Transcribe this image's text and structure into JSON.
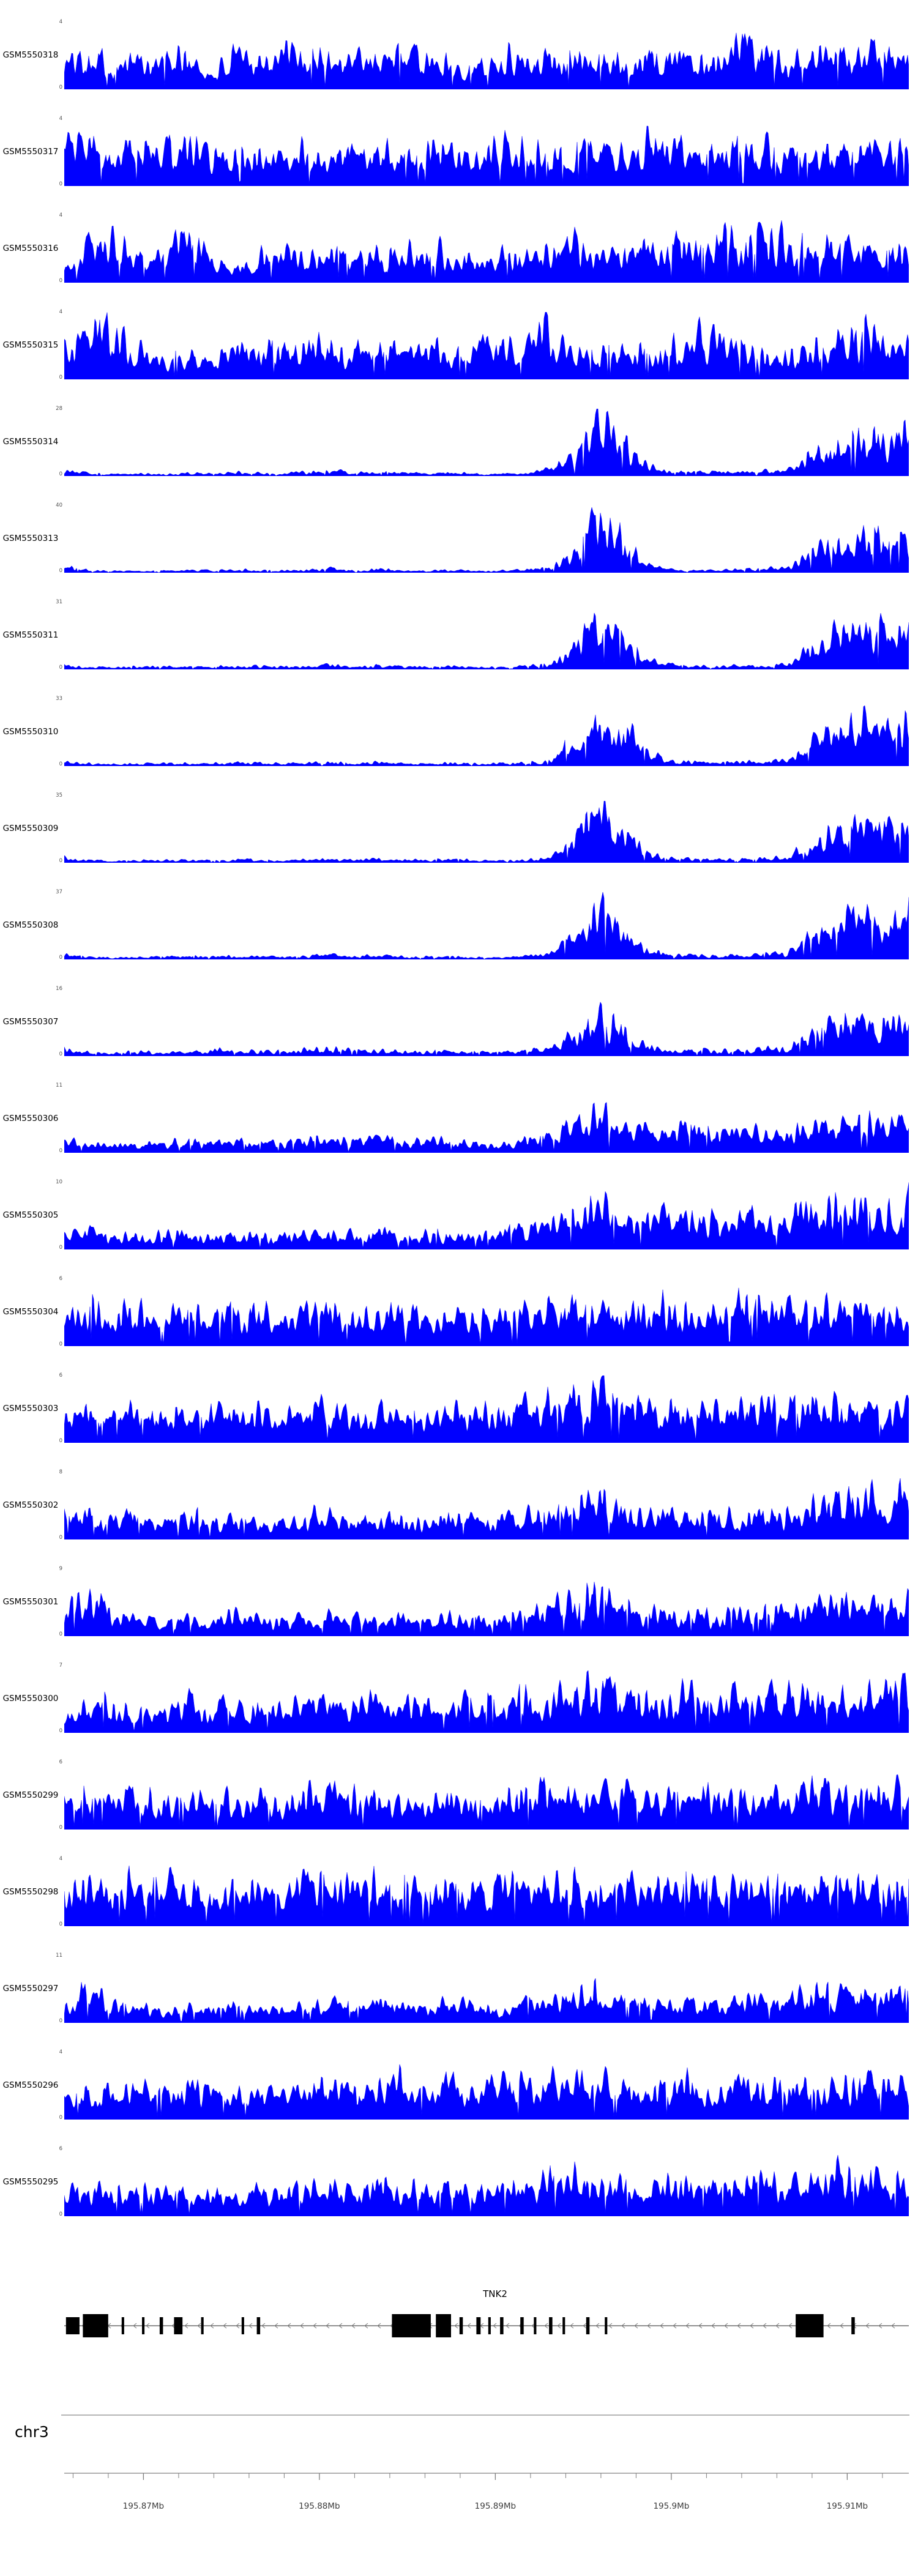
{
  "chart_data": {
    "type": "area",
    "title": "",
    "description": "Genome browser coverage tracks (read-density area plots) for 23 GSM samples over the TNK2 locus on chr3",
    "chromosome": "chr3",
    "style": {
      "area_fill": "#0000ff",
      "exon_fill": "#000000",
      "axis_color": "#808080",
      "label_color": "#000000",
      "tick_label_color": "#3c3c3c"
    },
    "x_axis": {
      "unit": "Mb",
      "start": 195.8655,
      "end": 195.9135,
      "minor_tick_step": 0.002,
      "major_ticks": [
        {
          "value": 195.87,
          "label": "195.87Mb"
        },
        {
          "value": 195.88,
          "label": "195.88Mb"
        },
        {
          "value": 195.89,
          "label": "195.89Mb"
        },
        {
          "value": 195.9,
          "label": "195.9Mb"
        },
        {
          "value": 195.91,
          "label": "195.91Mb"
        }
      ]
    },
    "gene_annotation": {
      "name": "TNK2",
      "strand": "-",
      "exons": [
        {
          "x": 0.002,
          "w": 0.016,
          "h": 28
        },
        {
          "x": 0.022,
          "w": 0.03,
          "h": 38
        },
        {
          "x": 0.068,
          "w": 0.003,
          "h": 28
        },
        {
          "x": 0.092,
          "w": 0.003,
          "h": 28
        },
        {
          "x": 0.113,
          "w": 0.004,
          "h": 28
        },
        {
          "x": 0.13,
          "w": 0.01,
          "h": 28
        },
        {
          "x": 0.162,
          "w": 0.003,
          "h": 28
        },
        {
          "x": 0.21,
          "w": 0.003,
          "h": 28
        },
        {
          "x": 0.228,
          "w": 0.004,
          "h": 28
        },
        {
          "x": 0.388,
          "w": 0.046,
          "h": 38
        },
        {
          "x": 0.44,
          "w": 0.018,
          "h": 38
        },
        {
          "x": 0.468,
          "w": 0.004,
          "h": 28
        },
        {
          "x": 0.488,
          "w": 0.005,
          "h": 28
        },
        {
          "x": 0.502,
          "w": 0.003,
          "h": 28
        },
        {
          "x": 0.516,
          "w": 0.004,
          "h": 28
        },
        {
          "x": 0.54,
          "w": 0.004,
          "h": 28
        },
        {
          "x": 0.556,
          "w": 0.003,
          "h": 28
        },
        {
          "x": 0.574,
          "w": 0.004,
          "h": 28
        },
        {
          "x": 0.59,
          "w": 0.003,
          "h": 28
        },
        {
          "x": 0.618,
          "w": 0.004,
          "h": 28
        },
        {
          "x": 0.64,
          "w": 0.003,
          "h": 28
        },
        {
          "x": 0.866,
          "w": 0.033,
          "h": 38
        },
        {
          "x": 0.932,
          "w": 0.004,
          "h": 28
        }
      ]
    },
    "tracks": [
      {
        "name": "GSM5550318",
        "ylim": [
          0,
          4
        ],
        "seed": 101,
        "envelope": [
          0.55,
          0.8,
          0.5,
          0.65,
          0.55,
          0.7,
          0.3,
          0.6,
          0.7,
          0.75,
          0.6,
          0.7,
          0.65,
          0.75,
          0.7,
          0.6,
          0.55,
          0.45,
          0.65,
          0.7,
          0.6,
          0.7,
          0.55,
          0.65,
          0.6,
          0.75,
          0.7,
          0.65,
          1.0,
          0.7,
          0.55,
          0.7,
          0.6,
          0.75,
          0.8,
          0.65
        ]
      },
      {
        "name": "GSM5550317",
        "ylim": [
          0,
          4
        ],
        "seed": 102,
        "envelope": [
          0.7,
          0.85,
          0.6,
          0.75,
          0.8,
          0.9,
          0.55,
          0.65,
          0.75,
          0.6,
          0.7,
          0.65,
          0.78,
          0.7,
          0.6,
          0.72,
          0.65,
          0.6,
          0.7,
          0.8,
          0.72,
          0.75,
          0.85,
          0.7,
          0.8,
          0.9,
          0.75,
          0.7,
          0.82,
          0.72,
          0.65,
          0.75,
          0.7,
          0.82,
          0.72,
          0.75
        ]
      },
      {
        "name": "GSM5550316",
        "ylim": [
          0,
          4
        ],
        "seed": 103,
        "envelope": [
          0.3,
          0.85,
          0.9,
          0.6,
          0.5,
          0.85,
          0.6,
          0.2,
          0.55,
          0.65,
          0.5,
          0.62,
          0.55,
          0.5,
          0.6,
          0.7,
          0.5,
          0.45,
          0.6,
          0.5,
          0.65,
          0.72,
          0.6,
          0.78,
          0.65,
          0.8,
          0.7,
          0.88,
          0.92,
          0.8,
          0.9,
          0.85,
          0.7,
          0.62,
          0.78,
          0.65
        ]
      },
      {
        "name": "GSM5550315",
        "ylim": [
          0,
          4
        ],
        "seed": 104,
        "envelope": [
          0.5,
          0.95,
          1.0,
          0.6,
          0.4,
          0.5,
          0.45,
          0.55,
          0.62,
          0.7,
          0.75,
          0.6,
          0.5,
          0.65,
          0.6,
          0.7,
          0.65,
          0.6,
          0.7,
          0.78,
          0.9,
          0.6,
          0.5,
          0.6,
          0.55,
          0.62,
          0.8,
          0.9,
          0.7,
          0.6,
          0.5,
          0.65,
          0.85,
          0.95,
          0.8,
          0.7
        ]
      },
      {
        "name": "GSM5550314",
        "ylim": [
          0,
          28
        ],
        "seed": 105,
        "envelope": [
          0.1,
          0.05,
          0.04,
          0.05,
          0.04,
          0.06,
          0.05,
          0.08,
          0.06,
          0.05,
          0.08,
          0.1,
          0.07,
          0.09,
          0.07,
          0.05,
          0.07,
          0.05,
          0.04,
          0.06,
          0.12,
          0.4,
          1.0,
          0.8,
          0.25,
          0.1,
          0.08,
          0.07,
          0.08,
          0.1,
          0.12,
          0.5,
          0.7,
          0.82,
          0.75,
          0.88
        ]
      },
      {
        "name": "GSM5550313",
        "ylim": [
          0,
          40
        ],
        "seed": 106,
        "envelope": [
          0.14,
          0.05,
          0.04,
          0.04,
          0.05,
          0.05,
          0.04,
          0.06,
          0.05,
          0.04,
          0.06,
          0.08,
          0.05,
          0.07,
          0.05,
          0.04,
          0.05,
          0.04,
          0.04,
          0.05,
          0.1,
          0.35,
          1.0,
          0.7,
          0.2,
          0.08,
          0.06,
          0.05,
          0.06,
          0.08,
          0.1,
          0.45,
          0.65,
          0.8,
          0.7,
          0.78
        ]
      },
      {
        "name": "GSM5550311",
        "ylim": [
          0,
          31
        ],
        "seed": 107,
        "envelope": [
          0.08,
          0.05,
          0.04,
          0.05,
          0.06,
          0.05,
          0.05,
          0.07,
          0.06,
          0.05,
          0.07,
          0.09,
          0.06,
          0.08,
          0.06,
          0.05,
          0.06,
          0.05,
          0.04,
          0.06,
          0.1,
          0.35,
          0.95,
          0.75,
          0.22,
          0.09,
          0.07,
          0.06,
          0.07,
          0.09,
          0.11,
          0.45,
          0.7,
          0.85,
          0.75,
          0.8
        ]
      },
      {
        "name": "GSM5550310",
        "ylim": [
          0,
          33
        ],
        "seed": 108,
        "envelope": [
          0.09,
          0.05,
          0.04,
          0.05,
          0.05,
          0.06,
          0.05,
          0.07,
          0.06,
          0.05,
          0.07,
          0.09,
          0.06,
          0.08,
          0.06,
          0.05,
          0.06,
          0.05,
          0.05,
          0.06,
          0.11,
          0.4,
          1.0,
          0.85,
          0.3,
          0.1,
          0.08,
          0.07,
          0.08,
          0.1,
          0.12,
          0.5,
          0.78,
          0.92,
          0.82,
          0.88
        ]
      },
      {
        "name": "GSM5550309",
        "ylim": [
          0,
          35
        ],
        "seed": 109,
        "envelope": [
          0.1,
          0.05,
          0.04,
          0.05,
          0.05,
          0.05,
          0.05,
          0.07,
          0.06,
          0.05,
          0.07,
          0.08,
          0.06,
          0.08,
          0.06,
          0.05,
          0.06,
          0.05,
          0.04,
          0.06,
          0.1,
          0.38,
          0.98,
          0.72,
          0.24,
          0.1,
          0.08,
          0.06,
          0.08,
          0.1,
          0.11,
          0.42,
          0.68,
          0.85,
          0.72,
          0.8
        ]
      },
      {
        "name": "GSM5550308",
        "ylim": [
          0,
          37
        ],
        "seed": 110,
        "envelope": [
          0.1,
          0.05,
          0.04,
          0.05,
          0.05,
          0.06,
          0.05,
          0.07,
          0.06,
          0.05,
          0.07,
          0.09,
          0.06,
          0.08,
          0.06,
          0.05,
          0.06,
          0.05,
          0.05,
          0.06,
          0.11,
          0.38,
          1.0,
          0.78,
          0.26,
          0.1,
          0.08,
          0.07,
          0.08,
          0.1,
          0.12,
          0.48,
          0.72,
          0.88,
          0.78,
          0.85
        ]
      },
      {
        "name": "GSM5550307",
        "ylim": [
          0,
          16
        ],
        "seed": 111,
        "envelope": [
          0.12,
          0.08,
          0.06,
          0.08,
          0.1,
          0.08,
          0.1,
          0.12,
          0.1,
          0.08,
          0.12,
          0.15,
          0.1,
          0.12,
          0.1,
          0.08,
          0.1,
          0.08,
          0.08,
          0.1,
          0.15,
          0.35,
          0.9,
          0.6,
          0.25,
          0.15,
          0.12,
          0.1,
          0.12,
          0.15,
          0.18,
          0.45,
          0.65,
          0.78,
          0.65,
          0.72
        ]
      },
      {
        "name": "GSM5550306",
        "ylim": [
          0,
          11
        ],
        "seed": 112,
        "envelope": [
          0.25,
          0.2,
          0.15,
          0.2,
          0.18,
          0.22,
          0.18,
          0.25,
          0.2,
          0.18,
          0.25,
          0.3,
          0.22,
          0.28,
          0.22,
          0.2,
          0.25,
          0.2,
          0.18,
          0.25,
          0.35,
          0.6,
          0.95,
          0.7,
          0.45,
          0.4,
          0.5,
          0.35,
          0.4,
          0.45,
          0.4,
          0.55,
          0.6,
          0.72,
          0.6,
          0.65
        ]
      },
      {
        "name": "GSM5550305",
        "ylim": [
          0,
          10
        ],
        "seed": 113,
        "envelope": [
          0.3,
          0.35,
          0.25,
          0.3,
          0.28,
          0.32,
          0.25,
          0.3,
          0.28,
          0.25,
          0.3,
          0.35,
          0.3,
          0.35,
          0.3,
          0.28,
          0.35,
          0.3,
          0.35,
          0.45,
          0.5,
          0.65,
          0.8,
          0.7,
          0.6,
          0.65,
          0.7,
          0.6,
          0.65,
          0.7,
          0.65,
          0.75,
          0.8,
          0.9,
          0.8,
          0.85
        ]
      },
      {
        "name": "GSM5550304",
        "ylim": [
          0,
          6
        ],
        "seed": 114,
        "envelope": [
          0.5,
          0.7,
          0.6,
          0.8,
          0.55,
          0.9,
          0.6,
          0.7,
          0.65,
          0.6,
          0.7,
          0.75,
          0.6,
          0.7,
          0.6,
          0.65,
          0.7,
          0.6,
          0.65,
          0.7,
          0.75,
          0.8,
          0.7,
          0.75,
          0.7,
          0.8,
          0.75,
          0.7,
          0.8,
          0.75,
          0.7,
          0.8,
          0.75,
          0.85,
          0.75,
          0.8
        ]
      },
      {
        "name": "GSM5550303",
        "ylim": [
          0,
          6
        ],
        "seed": 115,
        "envelope": [
          0.45,
          0.6,
          0.5,
          0.65,
          0.5,
          0.7,
          0.55,
          0.6,
          0.55,
          0.5,
          0.6,
          0.7,
          0.55,
          0.65,
          0.55,
          0.6,
          0.65,
          0.55,
          0.6,
          0.7,
          0.8,
          0.9,
          1.0,
          0.85,
          0.7,
          0.65,
          0.7,
          0.6,
          0.7,
          0.75,
          0.65,
          0.75,
          0.7,
          0.8,
          0.7,
          0.75
        ]
      },
      {
        "name": "GSM5550302",
        "ylim": [
          0,
          8
        ],
        "seed": 116,
        "envelope": [
          0.4,
          0.55,
          0.35,
          0.45,
          0.35,
          0.5,
          0.4,
          0.45,
          0.4,
          0.35,
          0.45,
          0.5,
          0.4,
          0.45,
          0.4,
          0.35,
          0.45,
          0.4,
          0.35,
          0.45,
          0.55,
          0.7,
          0.85,
          0.65,
          0.5,
          0.45,
          0.5,
          0.4,
          0.5,
          0.55,
          0.5,
          0.65,
          0.75,
          0.95,
          0.85,
          0.9
        ]
      },
      {
        "name": "GSM5550301",
        "ylim": [
          0,
          9
        ],
        "seed": 117,
        "envelope": [
          0.35,
          0.9,
          0.4,
          0.35,
          0.3,
          0.35,
          0.3,
          0.5,
          0.35,
          0.3,
          0.4,
          0.45,
          0.35,
          0.4,
          0.35,
          0.3,
          0.4,
          0.35,
          0.3,
          0.4,
          0.5,
          0.7,
          1.0,
          0.6,
          0.45,
          0.4,
          0.45,
          0.35,
          0.45,
          0.5,
          0.55,
          0.6,
          0.65,
          0.75,
          0.65,
          0.7
        ]
      },
      {
        "name": "GSM5550300",
        "ylim": [
          0,
          7
        ],
        "seed": 118,
        "envelope": [
          0.45,
          0.6,
          0.5,
          0.55,
          0.5,
          0.6,
          0.5,
          0.55,
          0.5,
          0.45,
          0.55,
          0.6,
          0.5,
          0.6,
          0.55,
          0.5,
          0.6,
          0.55,
          0.6,
          0.65,
          0.7,
          0.8,
          0.85,
          0.75,
          0.65,
          0.7,
          0.75,
          0.65,
          0.7,
          0.75,
          0.7,
          0.8,
          0.75,
          0.85,
          0.8,
          0.85
        ]
      },
      {
        "name": "GSM5550299",
        "ylim": [
          0,
          6
        ],
        "seed": 119,
        "envelope": [
          0.5,
          0.7,
          0.55,
          0.65,
          0.55,
          0.7,
          0.55,
          0.65,
          0.6,
          0.55,
          0.65,
          0.7,
          0.6,
          0.65,
          0.6,
          0.55,
          0.65,
          0.6,
          0.65,
          0.7,
          0.75,
          0.8,
          0.7,
          0.75,
          0.65,
          0.7,
          0.75,
          0.65,
          0.75,
          0.7,
          0.65,
          0.75,
          0.7,
          0.8,
          0.7,
          0.75
        ]
      },
      {
        "name": "GSM5550298",
        "ylim": [
          0,
          4
        ],
        "seed": 120,
        "envelope": [
          0.6,
          0.85,
          0.7,
          0.9,
          0.75,
          0.95,
          0.7,
          0.8,
          0.75,
          0.7,
          0.85,
          0.9,
          0.75,
          0.85,
          0.75,
          0.7,
          0.8,
          0.75,
          0.8,
          0.85,
          0.8,
          0.85,
          0.75,
          0.8,
          0.75,
          0.85,
          0.8,
          0.75,
          0.85,
          0.8,
          0.75,
          0.85,
          0.8,
          0.85,
          0.75,
          0.8
        ]
      },
      {
        "name": "GSM5550297",
        "ylim": [
          0,
          11
        ],
        "seed": 121,
        "envelope": [
          0.3,
          0.8,
          0.35,
          0.3,
          0.25,
          0.3,
          0.25,
          0.4,
          0.3,
          0.25,
          0.35,
          0.4,
          0.3,
          0.45,
          0.35,
          0.3,
          0.4,
          0.35,
          0.3,
          0.4,
          0.45,
          0.55,
          0.7,
          0.5,
          0.4,
          0.35,
          0.45,
          0.35,
          0.45,
          0.5,
          0.45,
          0.6,
          0.55,
          0.65,
          0.55,
          0.6
        ]
      },
      {
        "name": "GSM5550296",
        "ylim": [
          0,
          4
        ],
        "seed": 122,
        "envelope": [
          0.45,
          0.65,
          0.5,
          0.6,
          0.5,
          0.65,
          0.5,
          0.6,
          0.55,
          0.5,
          0.6,
          0.65,
          0.55,
          0.65,
          0.8,
          0.6,
          0.7,
          0.6,
          0.65,
          0.75,
          0.8,
          0.7,
          0.65,
          0.7,
          0.6,
          0.65,
          0.7,
          0.6,
          0.7,
          0.65,
          0.6,
          0.7,
          0.65,
          0.75,
          0.65,
          0.7
        ]
      },
      {
        "name": "GSM5550295",
        "ylim": [
          0,
          6
        ],
        "seed": 123,
        "envelope": [
          0.4,
          0.6,
          0.45,
          0.55,
          0.45,
          0.6,
          0.5,
          0.55,
          0.5,
          0.45,
          0.55,
          0.6,
          0.5,
          0.6,
          0.55,
          0.5,
          0.6,
          0.55,
          0.6,
          0.65,
          0.7,
          0.75,
          0.65,
          0.7,
          0.6,
          0.65,
          0.7,
          0.6,
          0.7,
          0.65,
          0.6,
          0.8,
          0.9,
          0.75,
          0.65,
          0.7
        ]
      }
    ]
  }
}
